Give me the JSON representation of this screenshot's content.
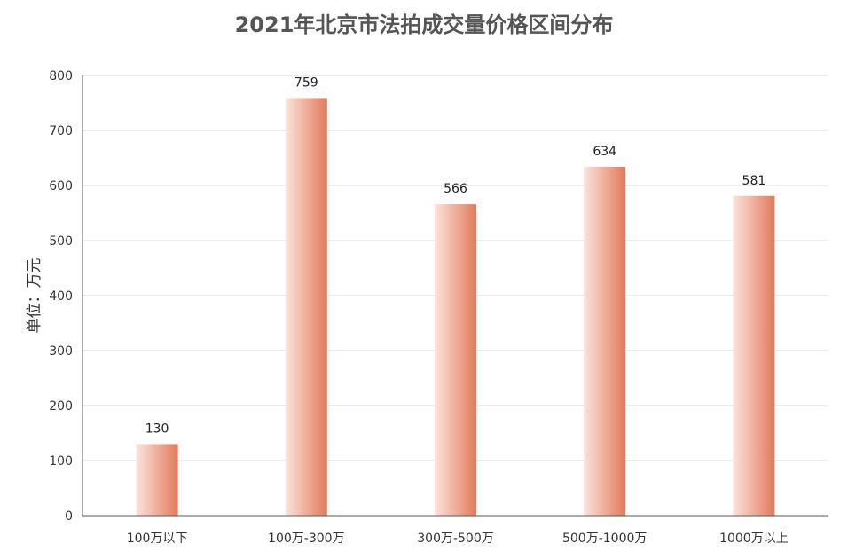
{
  "chart_data": {
    "type": "bar",
    "title": "2021年北京市法拍成交量价格区间分布",
    "ylabel": "单位：万元",
    "xlabel": "",
    "categories": [
      "100万以下",
      "100万-300万",
      "300万-500万",
      "500万-1000万",
      "1000万以上"
    ],
    "values": [
      130,
      759,
      566,
      634,
      581
    ],
    "data_labels": [
      "130",
      "759",
      "566",
      "634",
      "581"
    ],
    "ylim": [
      0,
      800
    ],
    "yticks": [
      "0",
      "100",
      "200",
      "300",
      "400",
      "500",
      "600",
      "700",
      "800"
    ],
    "grid": true,
    "legend": "none",
    "colors": {
      "bar_light": "#fbe3da",
      "bar_dark": "#e07a5c",
      "grid": "#d9d9d9",
      "axis": "#595959"
    }
  }
}
